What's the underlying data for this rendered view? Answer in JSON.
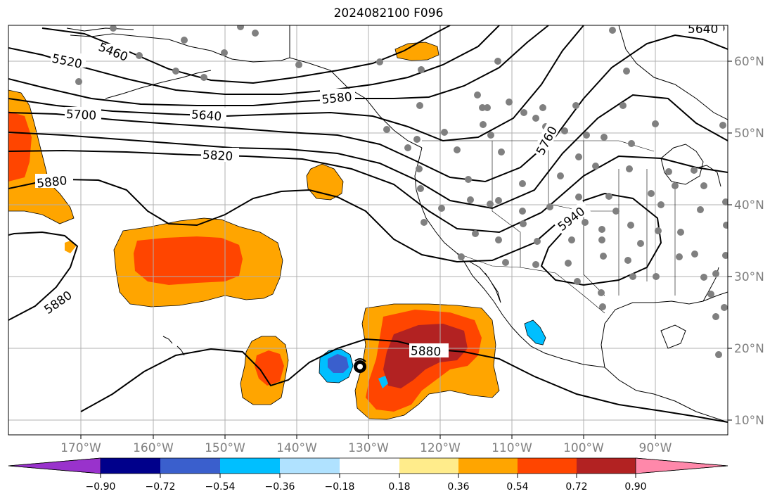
{
  "title": "2024082100 F096",
  "map": {
    "latitude_labels": [
      "60°N",
      "50°N",
      "40°N",
      "30°N",
      "20°N",
      "10°N"
    ],
    "longitude_labels": [
      "170°W",
      "160°W",
      "150°W",
      "140°W",
      "130°W",
      "120°W",
      "110°W",
      "100°W",
      "90°W"
    ],
    "contour_labels": [
      "5460",
      "5520",
      "5580",
      "5640",
      "5700",
      "5760",
      "5820",
      "5880",
      "5880",
      "5880",
      "5940",
      "5640"
    ],
    "colors": {
      "orange": "#ffa500",
      "red_orange": "#ff4500",
      "dark_red": "#b22222",
      "sky_blue": "#00bfff",
      "royal_blue": "#3a5fcd",
      "gray_dot": "#808080"
    }
  },
  "colorbar": {
    "colors": [
      "#9932cc",
      "#00008b",
      "#3a5fcd",
      "#00bfff",
      "#b0e2ff",
      "#ffffff",
      "#ffec8b",
      "#ffa500",
      "#ff4500",
      "#b22222",
      "#ff88aa"
    ],
    "tick_labels": [
      "−0.90",
      "−0.72",
      "−0.54",
      "−0.36",
      "−0.18",
      "0.18",
      "0.36",
      "0.54",
      "0.72",
      "0.90"
    ]
  }
}
